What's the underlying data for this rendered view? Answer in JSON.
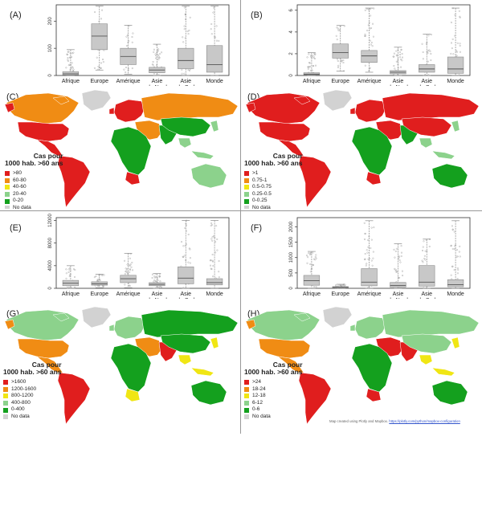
{
  "colors": {
    "box_fill": "#c8c8c8",
    "box_stroke": "#8a8a8a",
    "ocean": "#ffffff",
    "nodata": "#d6d6d6"
  },
  "chart_data": [
    {
      "type": "box",
      "label": "(A)",
      "categories": [
        "Afrique",
        "Europe",
        "Amérique",
        "Asie du Nord",
        "Asie du Sud",
        "Monde"
      ],
      "ylim": [
        0,
        260
      ],
      "yticks": [
        0,
        100,
        200
      ],
      "boxes": [
        {
          "min": 0,
          "q1": 2,
          "median": 6,
          "q3": 14,
          "max": 95
        },
        {
          "min": 20,
          "q1": 95,
          "median": 145,
          "q3": 190,
          "max": 255
        },
        {
          "min": 5,
          "q1": 40,
          "median": 70,
          "q3": 100,
          "max": 185
        },
        {
          "min": 0,
          "q1": 10,
          "median": 20,
          "q3": 30,
          "max": 115
        },
        {
          "min": 0,
          "q1": 25,
          "median": 55,
          "q3": 100,
          "max": 255
        },
        {
          "min": 0,
          "q1": 12,
          "median": 40,
          "q3": 110,
          "max": 255
        }
      ]
    },
    {
      "type": "box",
      "label": "(B)",
      "categories": [
        "Afrique",
        "Europe",
        "Amérique",
        "Asie du Nord",
        "Asie du Sud",
        "Monde"
      ],
      "ylim": [
        0,
        6.5
      ],
      "yticks": [
        0,
        2,
        4,
        6
      ],
      "boxes": [
        {
          "min": 0,
          "q1": 0.05,
          "median": 0.12,
          "q3": 0.25,
          "max": 2.1
        },
        {
          "min": 0.4,
          "q1": 1.6,
          "median": 2.1,
          "q3": 2.9,
          "max": 4.6
        },
        {
          "min": 0.3,
          "q1": 1.2,
          "median": 1.8,
          "q3": 2.3,
          "max": 6.2
        },
        {
          "min": 0,
          "q1": 0.15,
          "median": 0.3,
          "q3": 0.45,
          "max": 2.6
        },
        {
          "min": 0,
          "q1": 0.3,
          "median": 0.6,
          "q3": 1.0,
          "max": 3.8
        },
        {
          "min": 0,
          "q1": 0.2,
          "median": 0.6,
          "q3": 1.7,
          "max": 6.2
        }
      ]
    },
    {
      "type": "box",
      "label": "(E)",
      "categories": [
        "Afrique",
        "Europe",
        "Amérique",
        "Asie du Nord",
        "Asie du Sud",
        "Monde"
      ],
      "ylim": [
        0,
        12500
      ],
      "yticks": [
        0,
        4000,
        8000,
        12000
      ],
      "boxes": [
        {
          "min": 0,
          "q1": 450,
          "median": 900,
          "q3": 1400,
          "max": 4000
        },
        {
          "min": 100,
          "q1": 550,
          "median": 800,
          "q3": 1150,
          "max": 2500
        },
        {
          "min": 100,
          "q1": 1000,
          "median": 1700,
          "q3": 2300,
          "max": 6200
        },
        {
          "min": 0,
          "q1": 450,
          "median": 700,
          "q3": 1000,
          "max": 2600
        },
        {
          "min": 0,
          "q1": 800,
          "median": 1800,
          "q3": 3800,
          "max": 12000
        },
        {
          "min": 0,
          "q1": 600,
          "median": 1000,
          "q3": 1700,
          "max": 12000
        }
      ]
    },
    {
      "type": "box",
      "label": "(F)",
      "categories": [
        "Afrique",
        "Europe",
        "Amérique",
        "Asie du Nord",
        "Asie du Sud",
        "Monde"
      ],
      "ylim": [
        0,
        2300
      ],
      "yticks": [
        0,
        500,
        1000,
        1500,
        2000
      ],
      "boxes": [
        {
          "min": 0,
          "q1": 100,
          "median": 250,
          "q3": 420,
          "max": 1200
        },
        {
          "min": 0,
          "q1": 15,
          "median": 30,
          "q3": 55,
          "max": 130
        },
        {
          "min": 0,
          "q1": 80,
          "median": 200,
          "q3": 640,
          "max": 2200
        },
        {
          "min": 0,
          "q1": 40,
          "median": 90,
          "q3": 190,
          "max": 1450
        },
        {
          "min": 0,
          "q1": 70,
          "median": 200,
          "q3": 740,
          "max": 1600
        },
        {
          "min": 0,
          "q1": 50,
          "median": 120,
          "q3": 280,
          "max": 2200
        }
      ]
    },
    {
      "type": "choropleth",
      "label": "(C)",
      "legend_title": [
        "Cas pour",
        "1000 hab. >60 ans"
      ],
      "legend": [
        {
          "label": ">80",
          "color": "#e01e1e"
        },
        {
          "label": "60-80",
          "color": "#f08c14"
        },
        {
          "label": "40-60",
          "color": "#f0e614"
        },
        {
          "label": "20-40",
          "color": "#8cd28c"
        },
        {
          "label": "0-20",
          "color": "#14a01e"
        },
        {
          "label": "No data",
          "color": "#d2d2d2"
        }
      ],
      "regions": {
        "north_america": "#f08c14",
        "usa": "#e01e1e",
        "central_america": "#e01e1e",
        "south_america": "#e01e1e",
        "greenland": "#d2d2d2",
        "europe": "#e01e1e",
        "russia": "#f08c14",
        "middle_east": "#f08c14",
        "africa": "#14a01e",
        "south_africa": "#e01e1e",
        "south_asia": "#14a01e",
        "china": "#14a01e",
        "se_asia": "#8cd28c",
        "australia": "#8cd28c"
      }
    },
    {
      "type": "choropleth",
      "label": "(D)",
      "legend_title": [
        "Cas pour",
        "1000 hab. >60 ans"
      ],
      "legend": [
        {
          "label": ">1",
          "color": "#e01e1e"
        },
        {
          "label": "0.75-1",
          "color": "#f08c14"
        },
        {
          "label": "0.5-0.75",
          "color": "#f0e614"
        },
        {
          "label": "0.25-0.5",
          "color": "#8cd28c"
        },
        {
          "label": "0-0.25",
          "color": "#14a01e"
        },
        {
          "label": "No data",
          "color": "#d2d2d2"
        }
      ],
      "regions": {
        "north_america": "#e01e1e",
        "usa": "#e01e1e",
        "central_america": "#e01e1e",
        "south_america": "#e01e1e",
        "greenland": "#d2d2d2",
        "europe": "#e01e1e",
        "russia": "#e01e1e",
        "middle_east": "#e01e1e",
        "africa": "#14a01e",
        "south_africa": "#e01e1e",
        "south_asia": "#14a01e",
        "china": "#e01e1e",
        "se_asia": "#8cd28c",
        "australia": "#14a01e"
      }
    },
    {
      "type": "choropleth",
      "label": "(G)",
      "legend_title": [
        "Cas pour",
        "1000 hab. >60 ans"
      ],
      "legend": [
        {
          "label": ">1600",
          "color": "#e01e1e"
        },
        {
          "label": "1200-1600",
          "color": "#f08c14"
        },
        {
          "label": "800-1200",
          "color": "#f0e614"
        },
        {
          "label": "400-800",
          "color": "#8cd28c"
        },
        {
          "label": "0-400",
          "color": "#14a01e"
        },
        {
          "label": "No data",
          "color": "#d2d2d2"
        }
      ],
      "regions": {
        "north_america": "#8cd28c",
        "usa": "#f08c14",
        "central_america": "#f08c14",
        "south_america": "#e01e1e",
        "greenland": "#d2d2d2",
        "europe": "#8cd28c",
        "russia": "#14a01e",
        "middle_east": "#f08c14",
        "africa": "#14a01e",
        "south_africa": "#f0e614",
        "south_asia": "#e01e1e",
        "china": "#14a01e",
        "se_asia": "#f0e614",
        "australia": "#14a01e"
      }
    },
    {
      "type": "choropleth",
      "label": "(H)",
      "legend_title": [
        "Cas pour",
        "1000 hab. >60 ans"
      ],
      "legend": [
        {
          "label": ">24",
          "color": "#e01e1e"
        },
        {
          "label": "18-24",
          "color": "#f08c14"
        },
        {
          "label": "12-18",
          "color": "#f0e614"
        },
        {
          "label": "6-12",
          "color": "#8cd28c"
        },
        {
          "label": "0-6",
          "color": "#14a01e"
        },
        {
          "label": "No data",
          "color": "#d2d2d2"
        }
      ],
      "regions": {
        "north_america": "#8cd28c",
        "usa": "#f08c14",
        "central_america": "#f08c14",
        "south_america": "#e01e1e",
        "greenland": "#d2d2d2",
        "europe": "#8cd28c",
        "russia": "#8cd28c",
        "middle_east": "#e01e1e",
        "africa": "#14a01e",
        "south_africa": "#e01e1e",
        "south_asia": "#e01e1e",
        "china": "#8cd28c",
        "se_asia": "#f0e614",
        "australia": "#14a01e"
      }
    }
  ],
  "credit": {
    "text": "Map created using Plotly and Mapbox.",
    "link": "https://plotly.com/python/mapbox-configuration"
  }
}
